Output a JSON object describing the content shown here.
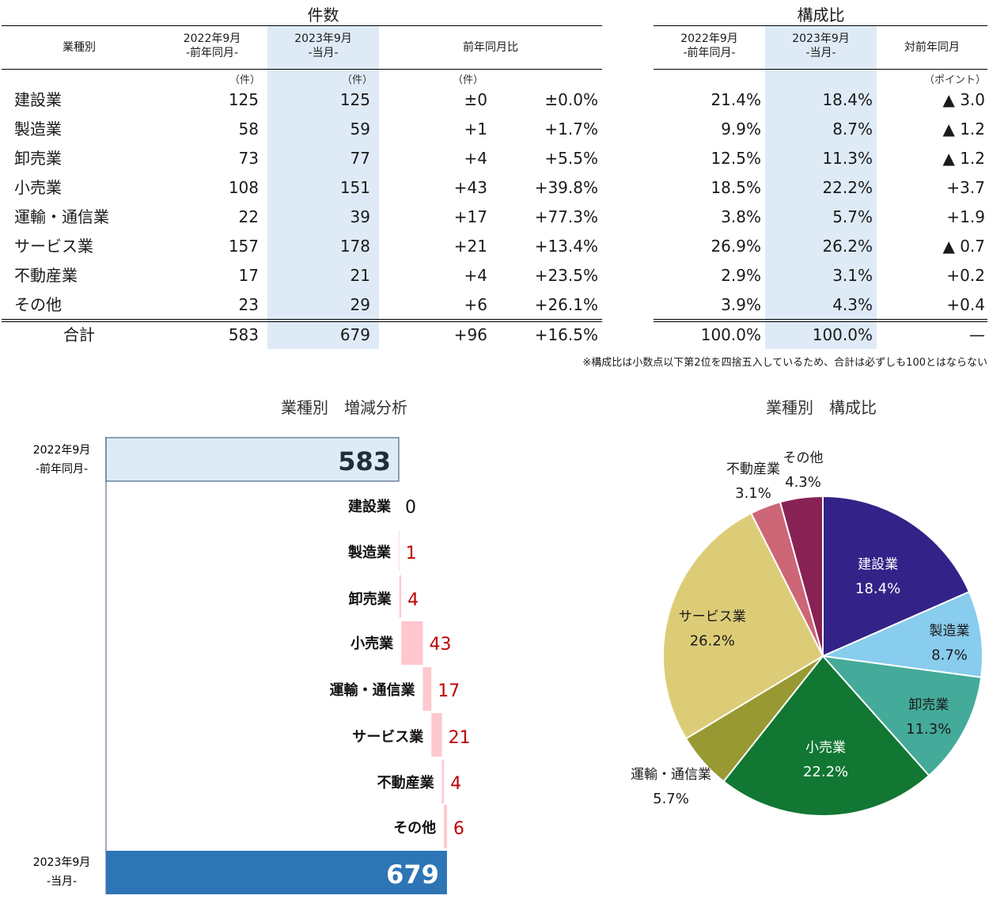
{
  "counts_table": {
    "title": "件数",
    "headers": {
      "industry": "業種別",
      "prev": [
        "2022年9月",
        "-前年同月-"
      ],
      "curr": [
        "2023年9月",
        "-当月-"
      ],
      "yoy": "前年同月比"
    },
    "units": {
      "prev": "（件）",
      "curr": "（件）",
      "diff": "（件）"
    },
    "rows": [
      {
        "name": "建設業",
        "prev": "125",
        "curr": "125",
        "diff": "±0",
        "pct": "±0.0%"
      },
      {
        "name": "製造業",
        "prev": "58",
        "curr": "59",
        "diff": "+1",
        "pct": "+1.7%"
      },
      {
        "name": "卸売業",
        "prev": "73",
        "curr": "77",
        "diff": "+4",
        "pct": "+5.5%"
      },
      {
        "name": "小売業",
        "prev": "108",
        "curr": "151",
        "diff": "+43",
        "pct": "+39.8%"
      },
      {
        "name": "運輸・通信業",
        "prev": "22",
        "curr": "39",
        "diff": "+17",
        "pct": "+77.3%"
      },
      {
        "name": "サービス業",
        "prev": "157",
        "curr": "178",
        "diff": "+21",
        "pct": "+13.4%"
      },
      {
        "name": "不動産業",
        "prev": "17",
        "curr": "21",
        "diff": "+4",
        "pct": "+23.5%"
      },
      {
        "name": "その他",
        "prev": "23",
        "curr": "29",
        "diff": "+6",
        "pct": "+26.1%"
      }
    ],
    "total": {
      "name": "合計",
      "prev": "583",
      "curr": "679",
      "diff": "+96",
      "pct": "+16.5%"
    }
  },
  "share_table": {
    "title": "構成比",
    "headers": {
      "prev": [
        "2022年9月",
        "-前年同月-"
      ],
      "curr": [
        "2023年9月",
        "-当月-"
      ],
      "yoy": "対前年同月"
    },
    "units": {
      "yoy": "（ポイント）"
    },
    "rows": [
      {
        "prev": "21.4%",
        "curr": "18.4%",
        "yoy": "▲ 3.0"
      },
      {
        "prev": "9.9%",
        "curr": "8.7%",
        "yoy": "▲ 1.2"
      },
      {
        "prev": "12.5%",
        "curr": "11.3%",
        "yoy": "▲ 1.2"
      },
      {
        "prev": "18.5%",
        "curr": "22.2%",
        "yoy": "+3.7"
      },
      {
        "prev": "3.8%",
        "curr": "5.7%",
        "yoy": "+1.9"
      },
      {
        "prev": "26.9%",
        "curr": "26.2%",
        "yoy": "▲ 0.7"
      },
      {
        "prev": "2.9%",
        "curr": "3.1%",
        "yoy": "+0.2"
      },
      {
        "prev": "3.9%",
        "curr": "4.3%",
        "yoy": "+0.4"
      }
    ],
    "total": {
      "prev": "100.0%",
      "curr": "100.0%",
      "yoy": "—"
    }
  },
  "note": "※構成比は小数点以下第2位を四捨五入しているため、合計は必ずしも100とはならない",
  "chart_data": [
    {
      "type": "bar",
      "title": "業種別　増減分析",
      "start": {
        "label": [
          "2022年9月",
          "-前年同月-"
        ],
        "value": 583
      },
      "end": {
        "label": [
          "2023年9月",
          "-当月-"
        ],
        "value": 679
      },
      "categories": [
        "建設業",
        "製造業",
        "卸売業",
        "小売業",
        "運輸・通信業",
        "サービス業",
        "不動産業",
        "その他"
      ],
      "values": [
        0,
        1,
        4,
        43,
        17,
        21,
        4,
        6
      ],
      "colors": {
        "start": "#deebf7",
        "end": "#2e75b6",
        "increase": "#ffc7ce",
        "increase_label": "#c00000"
      }
    },
    {
      "type": "pie",
      "title": "業種別　構成比",
      "slices": [
        {
          "name": "建設業",
          "value": 18.4,
          "label": "18.4%",
          "color": "#332288"
        },
        {
          "name": "製造業",
          "value": 8.7,
          "label": "8.7%",
          "color": "#88ccee"
        },
        {
          "name": "卸売業",
          "value": 11.3,
          "label": "11.3%",
          "color": "#44aa99"
        },
        {
          "name": "小売業",
          "value": 22.2,
          "label": "22.2%",
          "color": "#117733"
        },
        {
          "name": "運輸・通信業",
          "value": 5.7,
          "label": "5.7%",
          "color": "#999933"
        },
        {
          "name": "サービス業",
          "value": 26.2,
          "label": "26.2%",
          "color": "#ddcc77"
        },
        {
          "name": "不動産業",
          "value": 3.1,
          "label": "3.1%",
          "color": "#cc6677"
        },
        {
          "name": "その他",
          "value": 4.3,
          "label": "4.3%",
          "color": "#882255"
        }
      ]
    }
  ]
}
